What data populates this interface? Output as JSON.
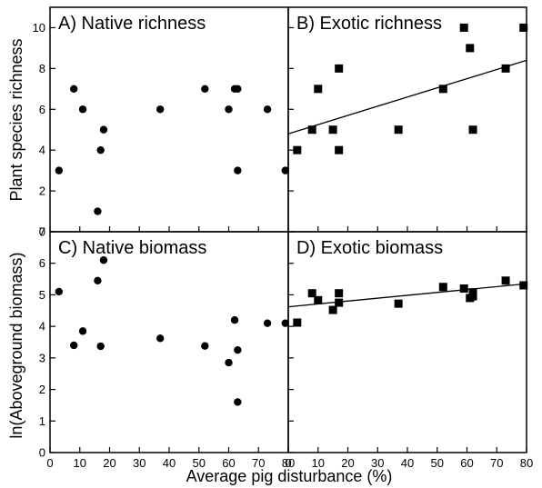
{
  "figure": {
    "xlabel": "Average pig disturbance (%)",
    "ylabel_top": "Plant species richness",
    "ylabel_bottom": "ln(Aboveground biomass)"
  },
  "chart_data": [
    {
      "type": "scatter",
      "panel": "A",
      "title": "A) Native richness",
      "marker": "circle",
      "xlim": [
        0,
        80
      ],
      "ylim": [
        0,
        11
      ],
      "yticks": [
        0,
        2,
        4,
        6,
        8,
        10
      ],
      "xticks": [
        0,
        10,
        20,
        30,
        40,
        50,
        60,
        70,
        80
      ],
      "show_xtick_labels": false,
      "show_ytick_labels": true,
      "points": [
        [
          3,
          3
        ],
        [
          8,
          7
        ],
        [
          11,
          6
        ],
        [
          16,
          1
        ],
        [
          17,
          4
        ],
        [
          18,
          5
        ],
        [
          37,
          6
        ],
        [
          52,
          7
        ],
        [
          60,
          6
        ],
        [
          62,
          7
        ],
        [
          63,
          7
        ],
        [
          63,
          3
        ],
        [
          73,
          6
        ],
        [
          79,
          3
        ]
      ]
    },
    {
      "type": "scatter",
      "panel": "B",
      "title": "B) Exotic richness",
      "marker": "square",
      "xlim": [
        0,
        80
      ],
      "ylim": [
        0,
        11
      ],
      "yticks": [
        0,
        2,
        4,
        6,
        8,
        10
      ],
      "xticks": [
        0,
        10,
        20,
        30,
        40,
        50,
        60,
        70,
        80
      ],
      "show_xtick_labels": false,
      "show_ytick_labels": false,
      "points": [
        [
          3,
          4
        ],
        [
          8,
          5
        ],
        [
          10,
          7
        ],
        [
          15,
          5
        ],
        [
          17,
          8
        ],
        [
          17,
          4
        ],
        [
          37,
          5
        ],
        [
          52,
          7
        ],
        [
          59,
          10
        ],
        [
          61,
          9
        ],
        [
          62,
          5
        ],
        [
          73,
          8
        ],
        [
          79,
          10
        ]
      ],
      "trendline": [
        [
          0,
          4.8
        ],
        [
          80,
          8.4
        ]
      ]
    },
    {
      "type": "scatter",
      "panel": "C",
      "title": "C) Native biomass",
      "marker": "circle",
      "xlim": [
        0,
        80
      ],
      "ylim": [
        0,
        7
      ],
      "yticks": [
        0,
        1,
        2,
        3,
        4,
        5,
        6,
        7
      ],
      "xticks": [
        0,
        10,
        20,
        30,
        40,
        50,
        60,
        70,
        80
      ],
      "show_xtick_labels": true,
      "show_ytick_labels": true,
      "points": [
        [
          3,
          5.1
        ],
        [
          8,
          3.4
        ],
        [
          11,
          3.85
        ],
        [
          16,
          5.45
        ],
        [
          17,
          3.37
        ],
        [
          18,
          6.1
        ],
        [
          37,
          3.62
        ],
        [
          52,
          3.38
        ],
        [
          60,
          2.85
        ],
        [
          62,
          4.2
        ],
        [
          63,
          3.25
        ],
        [
          63,
          1.6
        ],
        [
          73,
          4.1
        ],
        [
          79,
          4.1
        ]
      ]
    },
    {
      "type": "scatter",
      "panel": "D",
      "title": "D) Exotic biomass",
      "marker": "square",
      "xlim": [
        0,
        80
      ],
      "ylim": [
        0,
        7
      ],
      "yticks": [
        0,
        1,
        2,
        3,
        4,
        5,
        6,
        7
      ],
      "xticks": [
        0,
        10,
        20,
        30,
        40,
        50,
        60,
        70,
        80
      ],
      "show_xtick_labels": true,
      "show_ytick_labels": false,
      "points": [
        [
          3,
          4.12
        ],
        [
          8,
          5.05
        ],
        [
          10,
          4.83
        ],
        [
          15,
          4.52
        ],
        [
          17,
          5.05
        ],
        [
          17,
          4.75
        ],
        [
          37,
          4.72
        ],
        [
          52,
          5.25
        ],
        [
          59,
          5.2
        ],
        [
          61,
          4.9
        ],
        [
          62,
          4.95
        ],
        [
          62,
          5.08
        ],
        [
          73,
          5.45
        ],
        [
          79,
          5.3
        ]
      ],
      "trendline": [
        [
          0,
          4.62
        ],
        [
          80,
          5.35
        ]
      ]
    }
  ]
}
